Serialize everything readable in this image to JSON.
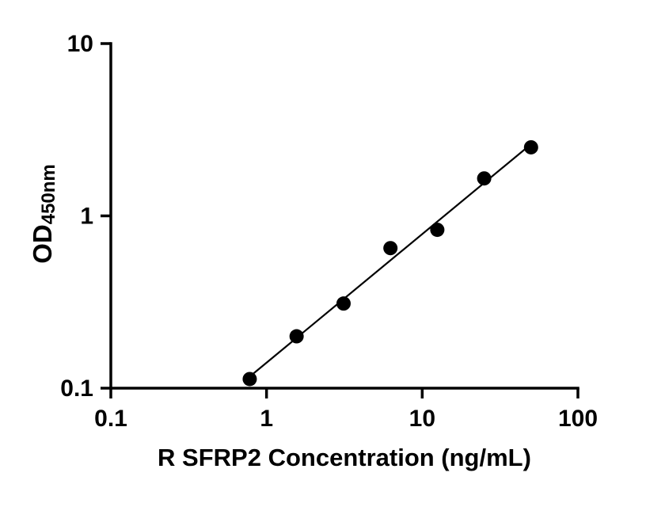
{
  "chart": {
    "xlabel": "R SFRP2 Concentration (ng/mL)",
    "ylabel_prefix": "OD",
    "ylabel_subscript": "450nm"
  },
  "chart_data": {
    "type": "scatter",
    "title": "",
    "xlabel": "R SFRP2 Concentration (ng/mL)",
    "ylabel": "OD450nm",
    "xscale": "log",
    "yscale": "log",
    "xlim": [
      0.1,
      100
    ],
    "ylim": [
      0.1,
      10
    ],
    "x_ticks": [
      "0.1",
      "1",
      "10",
      "100"
    ],
    "y_ticks": [
      "0.1",
      "1",
      "10"
    ],
    "x": [
      0.78,
      1.56,
      3.125,
      6.25,
      12.5,
      25,
      50
    ],
    "y": [
      0.113,
      0.2,
      0.31,
      0.65,
      0.83,
      1.65,
      2.5
    ],
    "fit": "straight line fit in log-log space through data points",
    "grid": false,
    "legend": "none",
    "marker_color": "#000000",
    "line_color": "#000000",
    "marker_radius": 9,
    "axis_color": "#000000"
  }
}
